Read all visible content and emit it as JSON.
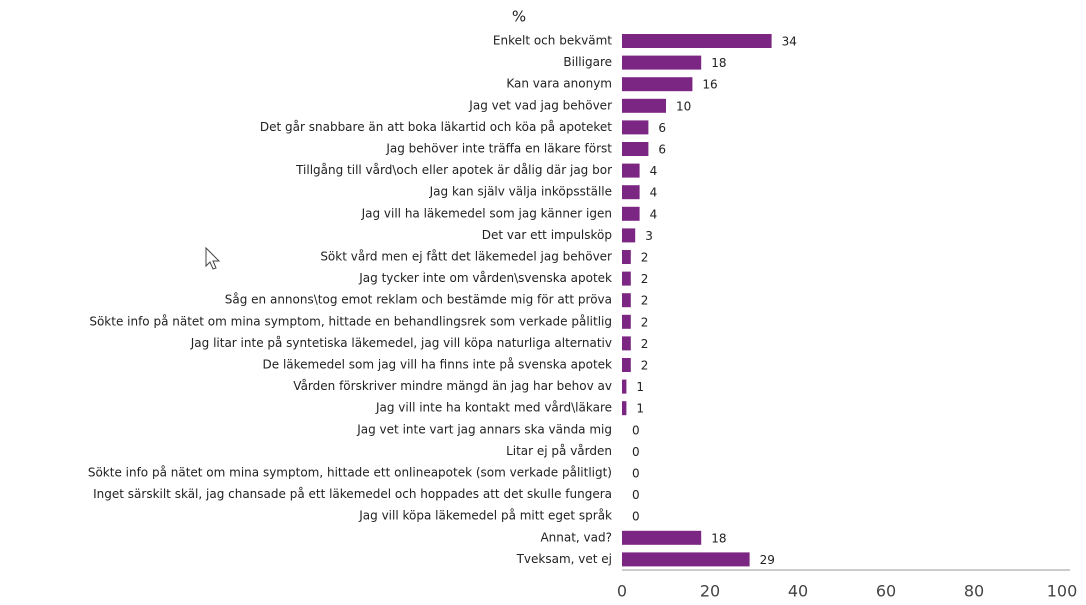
{
  "chart_data": {
    "type": "bar",
    "orientation": "horizontal",
    "title": "%",
    "categories": [
      "Enkelt och bekvämt",
      "Billigare",
      "Kan vara anonym",
      "Jag vet vad jag behöver",
      "Det går snabbare än att boka läkartid och köa på apoteket",
      "Jag behöver inte träffa en läkare först",
      "Tillgång till vård\\och eller apotek är dålig där jag bor",
      "Jag kan själv välja inköpsställe",
      "Jag vill ha läkemedel som jag känner igen",
      "Det var ett impulsköp",
      "Sökt vård men ej fått det läkemedel jag behöver",
      "Jag tycker inte om vården\\svenska apotek",
      "Såg en annons\\tog emot reklam och bestämde mig för att pröva",
      "Sökte info på nätet om mina symptom, hittade en behandlingsrek som verkade pålitlig",
      "Jag litar inte på syntetiska läkemedel, jag vill köpa naturliga alternativ",
      "De läkemedel som jag vill ha finns inte på svenska apotek",
      "Vården förskriver mindre mängd än jag har behov av",
      "Jag vill inte ha kontakt med vård\\läkare",
      "Jag vet inte vart jag annars ska vända mig",
      "Litar ej på vården",
      "Sökte info på nätet om mina symptom, hittade ett onlineapotek (som verkade pålitligt)",
      "Inget särskilt skäl, jag chansade på ett läkemedel och hoppades att det skulle fungera",
      "Jag vill köpa läkemedel på mitt eget språk",
      "Annat, vad?",
      "Tveksam, vet ej"
    ],
    "values": [
      34,
      18,
      16,
      10,
      6,
      6,
      4,
      4,
      4,
      3,
      2,
      2,
      2,
      2,
      2,
      2,
      1,
      1,
      0,
      0,
      0,
      0,
      0,
      18,
      29
    ],
    "color": "#7b2682",
    "xlim": [
      0,
      100
    ],
    "xticks": [
      0,
      20,
      40,
      60,
      80,
      100
    ]
  }
}
